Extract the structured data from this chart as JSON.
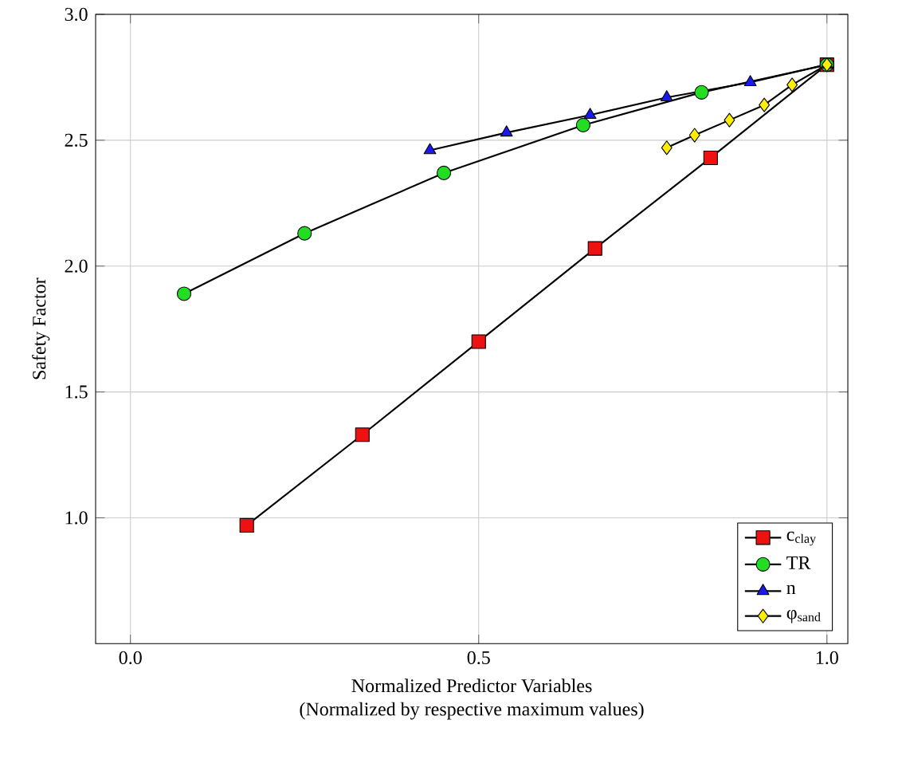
{
  "chart_data": {
    "type": "line",
    "xlabel": "Normalized Predictor Variables\n(Normalized by respective maximum values)",
    "ylabel": "Safety Factor",
    "xlim": [
      -0.05,
      1.03
    ],
    "ylim": [
      0.5,
      3.0
    ],
    "xticks": [
      {
        "value": 0.0,
        "label": "0.0"
      },
      {
        "value": 0.5,
        "label": "0.5"
      },
      {
        "value": 1.0,
        "label": "1.0"
      }
    ],
    "yticks": [
      {
        "value": 1.0,
        "label": "1.0"
      },
      {
        "value": 1.5,
        "label": "1.5"
      },
      {
        "value": 2.0,
        "label": "2.0"
      },
      {
        "value": 2.5,
        "label": "2.5"
      },
      {
        "value": 3.0,
        "label": "3.0"
      }
    ],
    "grid": true,
    "legend": "bottom right",
    "series": [
      {
        "name": "c$_{clay}$",
        "color": "#ee1111",
        "marker": "square",
        "x": [
          0.167,
          0.333,
          0.5,
          0.667,
          0.833,
          1.0
        ],
        "values": [
          0.97,
          1.33,
          1.7,
          2.07,
          2.43,
          2.8
        ]
      },
      {
        "name": "TR",
        "color": "#22dd22",
        "marker": "circle",
        "x": [
          0.077,
          0.25,
          0.45,
          0.65,
          0.82,
          1.0
        ],
        "values": [
          1.89,
          2.13,
          2.37,
          2.56,
          2.69,
          2.8
        ]
      },
      {
        "name": "n",
        "color": "#1a1aee",
        "marker": "triangle",
        "x": [
          0.43,
          0.54,
          0.66,
          0.77,
          0.89,
          1.0
        ],
        "values": [
          2.46,
          2.53,
          2.6,
          2.67,
          2.73,
          2.8
        ]
      },
      {
        "name": "φ$_{sand}$",
        "color": "#ffee00",
        "marker": "diamond",
        "x": [
          0.77,
          0.81,
          0.86,
          0.91,
          0.95,
          1.0
        ],
        "values": [
          2.47,
          2.52,
          2.58,
          2.64,
          2.72,
          2.8
        ]
      }
    ]
  }
}
